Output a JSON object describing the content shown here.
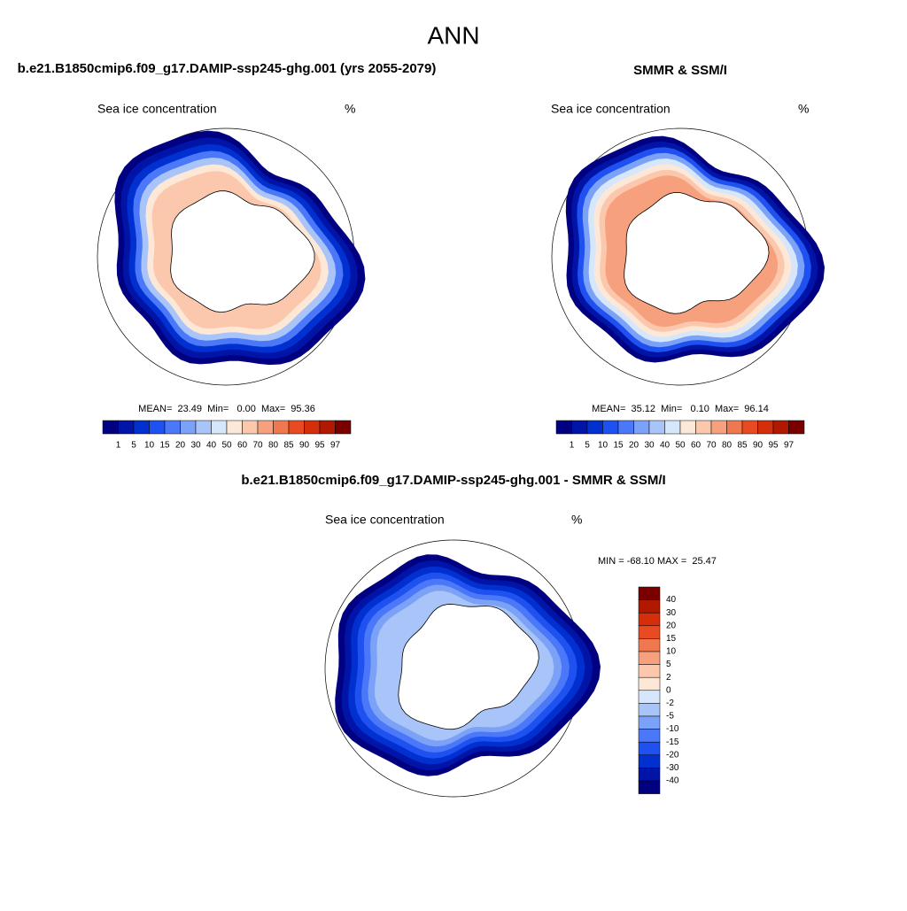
{
  "title": "ANN",
  "panels": [
    {
      "title": "b.e21.B1850cmip6.f09_g17.DAMIP-ssp245-ghg.001 (yrs 2055-2079)",
      "left_label": "Sea ice concentration",
      "right_label": "%",
      "stats": "MEAN=  23.49  Min=   0.00  Max=  95.36"
    },
    {
      "title": "SMMR & SSM/I",
      "left_label": "Sea ice concentration",
      "right_label": "%",
      "stats": "MEAN=  35.12  Min=   0.10  Max=  96.14"
    },
    {
      "title": "b.e21.B1850cmip6.f09_g17.DAMIP-ssp245-ghg.001 - SMMR & SSM/I",
      "left_label": "Sea ice concentration",
      "right_label": "%",
      "stats": "MIN = -68.10 MAX =  25.47"
    }
  ],
  "concentration_colorbar": {
    "labels": [
      "1",
      "5",
      "10",
      "15",
      "20",
      "30",
      "40",
      "50",
      "60",
      "70",
      "80",
      "85",
      "90",
      "95",
      "97"
    ],
    "colors": [
      "#000080",
      "#0015a8",
      "#0030d0",
      "#1f50f0",
      "#4a78f8",
      "#7ca2f8",
      "#a8c4f8",
      "#d6e6fb",
      "#fde8d8",
      "#fbc8ae",
      "#f7a07e",
      "#f07850",
      "#e84a22",
      "#d42e0a",
      "#b01800",
      "#7a0000"
    ]
  },
  "difference_colorbar": {
    "labels": [
      "40",
      "30",
      "20",
      "15",
      "10",
      "5",
      "2",
      "0",
      "-2",
      "-5",
      "-10",
      "-15",
      "-20",
      "-30",
      "-40"
    ],
    "colors": [
      "#7a0000",
      "#b01800",
      "#d42e0a",
      "#e84a22",
      "#f07850",
      "#f7a07e",
      "#fbc8ae",
      "#fde8d8",
      "#d6e6fb",
      "#a8c4f8",
      "#7ca2f8",
      "#4a78f8",
      "#1f50f0",
      "#0030d0",
      "#0015a8",
      "#000080"
    ]
  }
}
